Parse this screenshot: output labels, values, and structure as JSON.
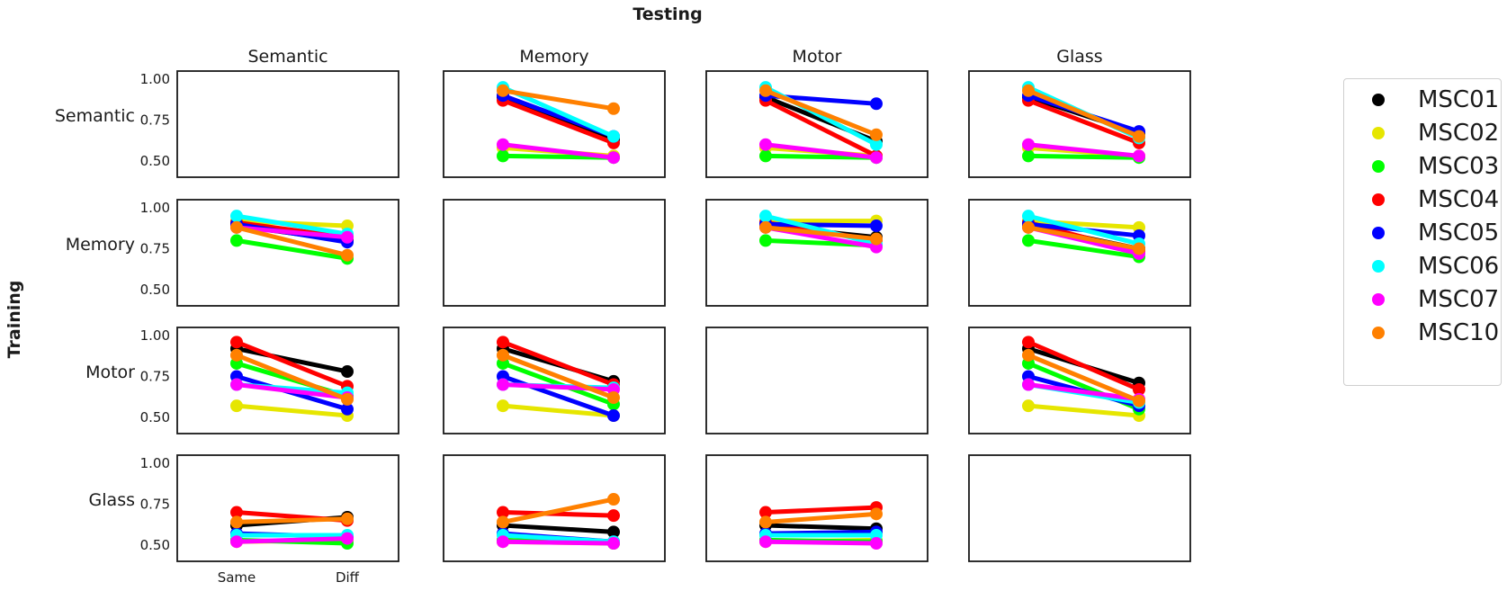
{
  "figure": {
    "title": "Testing",
    "row_axis_label": "Training"
  },
  "legend": {
    "entries": [
      {
        "name": "MSC01",
        "color": "#000000"
      },
      {
        "name": "MSC02",
        "color": "#e6e600"
      },
      {
        "name": "MSC03",
        "color": "#00ff00"
      },
      {
        "name": "MSC04",
        "color": "#ff0000"
      },
      {
        "name": "MSC05",
        "color": "#0000ff"
      },
      {
        "name": "MSC06",
        "color": "#00ffff"
      },
      {
        "name": "MSC07",
        "color": "#ff00ff"
      },
      {
        "name": "MSC10",
        "color": "#ff8000"
      }
    ]
  },
  "chart_data": {
    "type": "line",
    "grid": false,
    "legend_placement": "right",
    "column_titles": [
      "Semantic",
      "Memory",
      "Motor",
      "Glass"
    ],
    "row_titles": [
      "Semantic",
      "Memory",
      "Motor",
      "Glass"
    ],
    "x_tick_labels": [
      "Same",
      "Diff"
    ],
    "ylim": [
      0.4,
      1.05
    ],
    "y_ticks": [
      0.5,
      0.75,
      1.0
    ],
    "y_tick_labels": [
      "0.50",
      "0.75",
      "1.00"
    ],
    "series_names": [
      "MSC01",
      "MSC02",
      "MSC03",
      "MSC04",
      "MSC05",
      "MSC06",
      "MSC07",
      "MSC10"
    ],
    "panels": [
      {
        "train": "Semantic",
        "test": "Semantic",
        "empty": true
      },
      {
        "train": "Semantic",
        "test": "Memory",
        "same": [
          0.89,
          0.58,
          0.53,
          0.87,
          0.9,
          0.95,
          0.6,
          0.93
        ],
        "diff": [
          0.63,
          0.53,
          0.52,
          0.61,
          0.65,
          0.65,
          0.52,
          0.82
        ]
      },
      {
        "train": "Semantic",
        "test": "Motor",
        "same": [
          0.89,
          0.58,
          0.53,
          0.87,
          0.9,
          0.95,
          0.6,
          0.93
        ],
        "diff": [
          0.62,
          0.53,
          0.52,
          0.53,
          0.85,
          0.6,
          0.52,
          0.66
        ]
      },
      {
        "train": "Semantic",
        "test": "Glass",
        "same": [
          0.89,
          0.58,
          0.53,
          0.87,
          0.9,
          0.95,
          0.6,
          0.93
        ],
        "diff": [
          0.67,
          0.53,
          0.52,
          0.61,
          0.68,
          0.64,
          0.53,
          0.65
        ]
      },
      {
        "train": "Memory",
        "test": "Semantic",
        "same": [
          0.89,
          0.92,
          0.8,
          0.91,
          0.9,
          0.95,
          0.88,
          0.88
        ],
        "diff": [
          0.8,
          0.89,
          0.69,
          0.82,
          0.79,
          0.84,
          0.82,
          0.71
        ]
      },
      {
        "train": "Memory",
        "test": "Memory",
        "empty": true
      },
      {
        "train": "Memory",
        "test": "Motor",
        "same": [
          0.89,
          0.92,
          0.8,
          0.91,
          0.9,
          0.95,
          0.88,
          0.88
        ],
        "diff": [
          0.82,
          0.92,
          0.77,
          0.8,
          0.89,
          0.78,
          0.76,
          0.81
        ]
      },
      {
        "train": "Memory",
        "test": "Glass",
        "same": [
          0.89,
          0.92,
          0.8,
          0.91,
          0.9,
          0.95,
          0.88,
          0.88
        ],
        "diff": [
          0.75,
          0.88,
          0.7,
          0.73,
          0.83,
          0.78,
          0.72,
          0.75
        ]
      },
      {
        "train": "Motor",
        "test": "Semantic",
        "same": [
          0.92,
          0.57,
          0.83,
          0.96,
          0.75,
          0.7,
          0.7,
          0.88
        ],
        "diff": [
          0.78,
          0.51,
          0.63,
          0.69,
          0.55,
          0.65,
          0.62,
          0.61
        ]
      },
      {
        "train": "Motor",
        "test": "Memory",
        "same": [
          0.92,
          0.57,
          0.83,
          0.96,
          0.75,
          0.7,
          0.7,
          0.88
        ],
        "diff": [
          0.72,
          0.51,
          0.58,
          0.7,
          0.51,
          0.68,
          0.67,
          0.62
        ]
      },
      {
        "train": "Motor",
        "test": "Motor",
        "empty": true
      },
      {
        "train": "Motor",
        "test": "Glass",
        "same": [
          0.92,
          0.57,
          0.83,
          0.96,
          0.75,
          0.7,
          0.7,
          0.88
        ],
        "diff": [
          0.71,
          0.51,
          0.55,
          0.67,
          0.57,
          0.59,
          0.61,
          0.6
        ]
      },
      {
        "train": "Glass",
        "test": "Semantic",
        "same": [
          0.62,
          0.52,
          0.53,
          0.7,
          0.57,
          0.56,
          0.52,
          0.64
        ],
        "diff": [
          0.67,
          0.53,
          0.51,
          0.65,
          0.55,
          0.56,
          0.54,
          0.66
        ]
      },
      {
        "train": "Glass",
        "test": "Memory",
        "same": [
          0.62,
          0.52,
          0.53,
          0.7,
          0.57,
          0.56,
          0.52,
          0.64
        ],
        "diff": [
          0.58,
          0.51,
          0.51,
          0.68,
          0.52,
          0.52,
          0.51,
          0.78
        ]
      },
      {
        "train": "Glass",
        "test": "Motor",
        "same": [
          0.62,
          0.52,
          0.53,
          0.7,
          0.57,
          0.56,
          0.52,
          0.64
        ],
        "diff": [
          0.6,
          0.53,
          0.52,
          0.73,
          0.58,
          0.56,
          0.51,
          0.69
        ]
      },
      {
        "train": "Glass",
        "test": "Glass",
        "empty": true
      }
    ]
  }
}
